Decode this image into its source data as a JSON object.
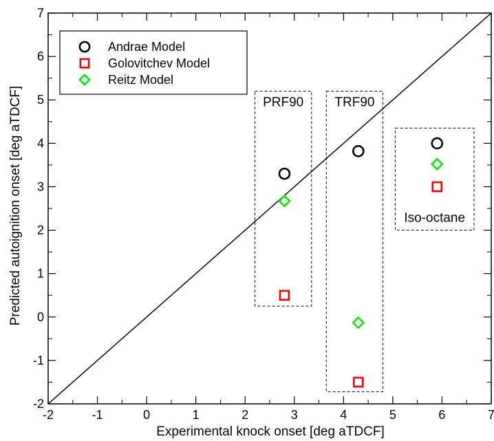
{
  "chart_data": {
    "type": "scatter",
    "title": "",
    "xlabel": "Experimental knock onset [deg aTDCF]",
    "ylabel": "Predicted autoignition onset [deg aTDCF]",
    "xlim": [
      -2,
      7
    ],
    "ylim": [
      -2,
      7
    ],
    "x_ticks": [
      "-2",
      "-1",
      "0",
      "1",
      "2",
      "3",
      "4",
      "5",
      "6",
      "7"
    ],
    "y_ticks": [
      "-2",
      "-1",
      "0",
      "1",
      "2",
      "3",
      "4",
      "5",
      "6",
      "7"
    ],
    "grid": false,
    "legend_position": "top-left",
    "reference_line": {
      "from": [
        -2,
        -2
      ],
      "to": [
        7,
        7
      ]
    },
    "series": [
      {
        "name": "Andrae Model",
        "marker": "circle",
        "color": "#000000",
        "points": [
          {
            "x": 2.8,
            "y": 3.3
          },
          {
            "x": 4.3,
            "y": 3.82
          },
          {
            "x": 5.9,
            "y": 4.0
          }
        ]
      },
      {
        "name": "Golovitchev Model",
        "marker": "square",
        "color": "#ff0000",
        "points": [
          {
            "x": 2.8,
            "y": 0.5
          },
          {
            "x": 4.3,
            "y": -1.5
          },
          {
            "x": 5.9,
            "y": 3.0
          }
        ]
      },
      {
        "name": "Reitz Model",
        "marker": "diamond",
        "color": "#00ee00",
        "points": [
          {
            "x": 2.8,
            "y": 2.67
          },
          {
            "x": 4.3,
            "y": -0.13
          },
          {
            "x": 5.9,
            "y": 3.52
          }
        ]
      }
    ],
    "groups": [
      {
        "label": "PRF90",
        "xrange": [
          2.2,
          3.35
        ],
        "yrange": [
          0.25,
          5.2
        ],
        "label_at": "top"
      },
      {
        "label": "TRF90",
        "xrange": [
          3.65,
          4.8
        ],
        "yrange": [
          -1.72,
          5.2
        ],
        "label_at": "top"
      },
      {
        "label": "Iso-octane",
        "xrange": [
          5.05,
          6.65
        ],
        "yrange": [
          2.0,
          4.35
        ],
        "label_at": "bottom"
      }
    ]
  }
}
